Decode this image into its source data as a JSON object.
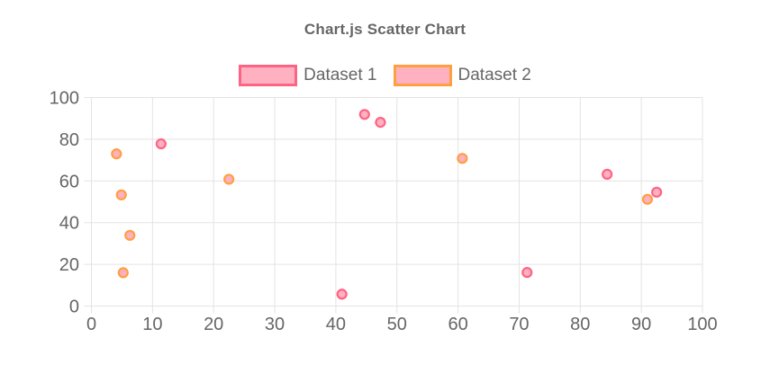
{
  "chart_data": {
    "type": "scatter",
    "title": "Chart.js Scatter Chart",
    "xlabel": "",
    "ylabel": "",
    "xlim": [
      0,
      100
    ],
    "ylim": [
      0,
      100
    ],
    "x_ticks": [
      0,
      10,
      20,
      30,
      40,
      50,
      60,
      70,
      80,
      90,
      100
    ],
    "y_ticks": [
      0,
      20,
      40,
      60,
      80,
      100
    ],
    "grid": true,
    "legend_position": "top",
    "text_color": "#666666",
    "grid_color": "#e3e3e3",
    "series": [
      {
        "name": "Dataset 1",
        "border_color": "#ff6384",
        "fill_color": "#ffb1c1",
        "points": [
          [
            11.4,
            77.8
          ],
          [
            41.0,
            5.7
          ],
          [
            44.7,
            91.9
          ],
          [
            47.3,
            88.1
          ],
          [
            71.3,
            16.1
          ],
          [
            84.4,
            63.2
          ],
          [
            92.5,
            54.6
          ]
        ]
      },
      {
        "name": "Dataset 2",
        "border_color": "#ff9f40",
        "fill_color": "#ffb1c1",
        "points": [
          [
            4.1,
            73.0
          ],
          [
            4.9,
            53.3
          ],
          [
            6.3,
            33.9
          ],
          [
            5.2,
            16.0
          ],
          [
            22.5,
            60.8
          ],
          [
            60.7,
            70.8
          ],
          [
            91.0,
            51.2
          ]
        ]
      }
    ]
  }
}
